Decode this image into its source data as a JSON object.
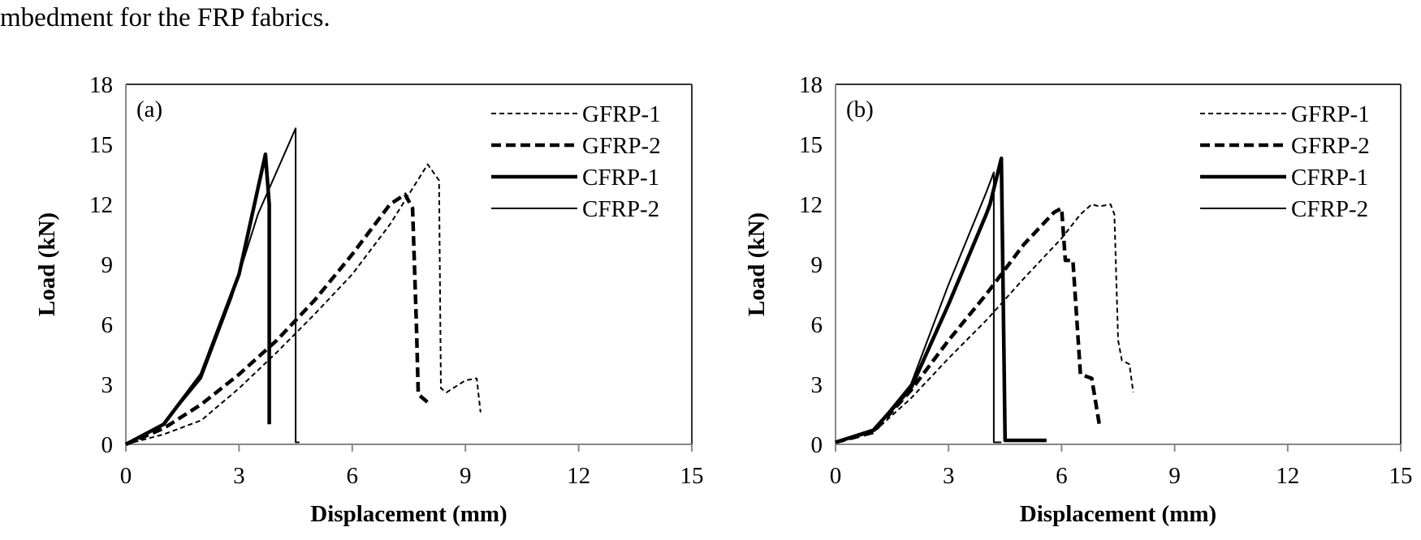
{
  "caption": "mbedment for the FRP fabrics.",
  "chart_data": [
    {
      "type": "line",
      "panel_label": "(a)",
      "xlabel": "Displacement (mm)",
      "ylabel": "Load (kN)",
      "xlim": [
        0,
        15
      ],
      "ylim": [
        0,
        18
      ],
      "xticks": [
        0,
        3,
        6,
        9,
        12,
        15
      ],
      "yticks": [
        0,
        3,
        6,
        9,
        12,
        15,
        18
      ],
      "legend_position": "top-right",
      "series": [
        {
          "name": "GFRP-1",
          "style": "thin-dash",
          "points": [
            [
              0,
              0
            ],
            [
              1,
              0.5
            ],
            [
              2,
              1.2
            ],
            [
              3,
              2.8
            ],
            [
              4,
              4.6
            ],
            [
              5,
              6.5
            ],
            [
              6,
              8.5
            ],
            [
              7,
              11
            ],
            [
              7.5,
              12.5
            ],
            [
              8,
              14
            ],
            [
              8.3,
              13.2
            ],
            [
              8.35,
              2.8
            ],
            [
              8.5,
              2.6
            ],
            [
              9,
              3.2
            ],
            [
              9.3,
              3.3
            ],
            [
              9.4,
              1.6
            ]
          ]
        },
        {
          "name": "GFRP-2",
          "style": "thick-dash",
          "points": [
            [
              0,
              0
            ],
            [
              1,
              0.8
            ],
            [
              2,
              2
            ],
            [
              3,
              3.5
            ],
            [
              4,
              5.2
            ],
            [
              5,
              7.2
            ],
            [
              6,
              9.5
            ],
            [
              7,
              12
            ],
            [
              7.4,
              12.5
            ],
            [
              7.6,
              11.8
            ],
            [
              7.7,
              6
            ],
            [
              7.75,
              2.5
            ],
            [
              8,
              2.1
            ]
          ]
        },
        {
          "name": "CFRP-1",
          "style": "thick-solid",
          "points": [
            [
              0,
              0
            ],
            [
              1,
              1
            ],
            [
              2,
              3.5
            ],
            [
              3,
              8.5
            ],
            [
              3.7,
              14.5
            ],
            [
              3.8,
              12
            ],
            [
              3.8,
              1.0
            ]
          ]
        },
        {
          "name": "CFRP-2",
          "style": "thin-solid",
          "points": [
            [
              0,
              0
            ],
            [
              1,
              1
            ],
            [
              2,
              3.3
            ],
            [
              2.8,
              7.3
            ],
            [
              3.5,
              11.5
            ],
            [
              4.5,
              15.8
            ],
            [
              4.5,
              0.1
            ],
            [
              4.6,
              0.1
            ]
          ]
        }
      ]
    },
    {
      "type": "line",
      "panel_label": "(b)",
      "xlabel": "Displacement (mm)",
      "ylabel": "Load (kN)",
      "xlim": [
        0,
        15
      ],
      "ylim": [
        0,
        18
      ],
      "xticks": [
        0,
        3,
        6,
        9,
        12,
        15
      ],
      "yticks": [
        0,
        3,
        6,
        9,
        12,
        15,
        18
      ],
      "legend_position": "top-right",
      "series": [
        {
          "name": "GFRP-1",
          "style": "thin-dash",
          "points": [
            [
              0,
              0.1
            ],
            [
              1,
              0.6
            ],
            [
              2,
              2.3
            ],
            [
              3,
              4.3
            ],
            [
              4,
              6.2
            ],
            [
              5,
              8.3
            ],
            [
              6,
              10.3
            ],
            [
              6.5,
              11.5
            ],
            [
              6.8,
              12
            ],
            [
              7,
              11.9
            ],
            [
              7.3,
              12
            ],
            [
              7.4,
              11.5
            ],
            [
              7.5,
              5.2
            ],
            [
              7.6,
              4.2
            ],
            [
              7.8,
              4
            ],
            [
              7.9,
              2.6
            ]
          ]
        },
        {
          "name": "GFRP-2",
          "style": "thick-dash",
          "points": [
            [
              0,
              0.1
            ],
            [
              1,
              0.6
            ],
            [
              2,
              2.7
            ],
            [
              3,
              5.2
            ],
            [
              4,
              7.5
            ],
            [
              5,
              10
            ],
            [
              5.8,
              11.6
            ],
            [
              6,
              11.8
            ],
            [
              6.1,
              9.2
            ],
            [
              6.3,
              9.2
            ],
            [
              6.5,
              3.5
            ],
            [
              6.8,
              3.3
            ],
            [
              7,
              1.0
            ]
          ]
        },
        {
          "name": "CFRP-1",
          "style": "thick-solid",
          "points": [
            [
              0,
              0.1
            ],
            [
              1,
              0.7
            ],
            [
              2,
              2.8
            ],
            [
              3,
              7
            ],
            [
              4,
              11.5
            ],
            [
              4.1,
              12
            ],
            [
              4.4,
              14.3
            ],
            [
              4.5,
              0.2
            ],
            [
              5.6,
              0.2
            ]
          ]
        },
        {
          "name": "CFRP-2",
          "style": "thin-solid",
          "points": [
            [
              0,
              0.1
            ],
            [
              1,
              0.7
            ],
            [
              2,
              3
            ],
            [
              3,
              8
            ],
            [
              4,
              12.6
            ],
            [
              4.2,
              13.6
            ],
            [
              4.2,
              0.1
            ],
            [
              4.4,
              0.1
            ]
          ]
        }
      ]
    }
  ]
}
